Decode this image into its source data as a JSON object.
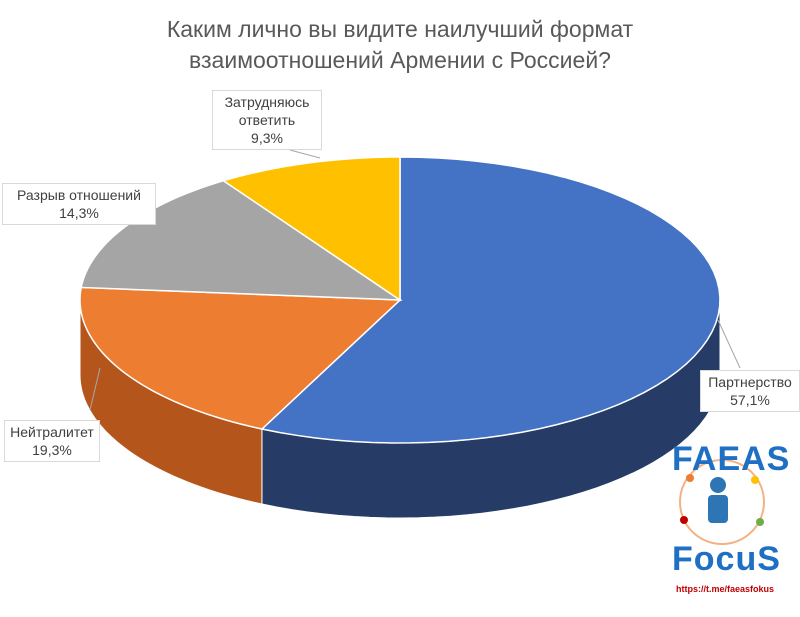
{
  "chart_data": {
    "type": "pie3d",
    "title": "Каким лично вы видите наилучший формат взаимоотношений Армении с Россией?",
    "categories": [
      "Партнерство",
      "Нейтралитет",
      "Разрыв отношений",
      "Затрудняюсь ответить"
    ],
    "values": [
      57.1,
      19.3,
      14.3,
      9.3
    ],
    "value_labels": [
      "57,1%",
      "19,3%",
      "14,3%",
      "9,3%"
    ],
    "colors": [
      "#4472c4",
      "#ed7d31",
      "#a5a5a5",
      "#ffc000"
    ],
    "side_colors": [
      "#263c66",
      "#b4561b",
      "#7b7b7b",
      "#bf9000"
    ]
  },
  "logo": {
    "top": "FAEAS",
    "bottom": "FocuS",
    "url": "https://t.me/faeasfokus"
  }
}
